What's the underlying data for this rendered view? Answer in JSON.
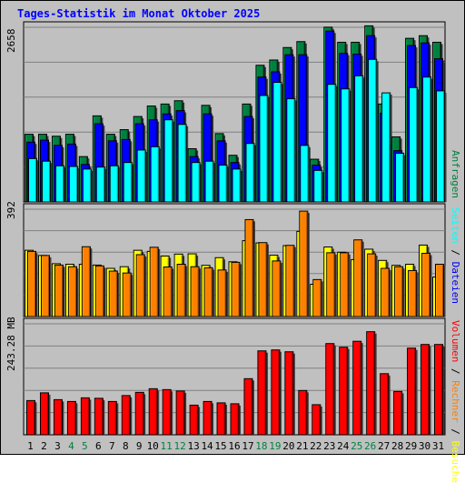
{
  "chart_data": {
    "type": "bar",
    "title": "Tages-Statistik im Monat Oktober 2025",
    "categories": [
      "1",
      "2",
      "3",
      "4",
      "5",
      "6",
      "7",
      "8",
      "9",
      "10",
      "11",
      "12",
      "13",
      "14",
      "15",
      "16",
      "17",
      "18",
      "19",
      "20",
      "21",
      "22",
      "23",
      "24",
      "25",
      "26",
      "27",
      "28",
      "29",
      "30",
      "31"
    ],
    "weekend_days": [
      "4",
      "5",
      "11",
      "12",
      "18",
      "19",
      "25",
      "26"
    ],
    "panels": [
      {
        "id": "top",
        "ymax_label": "2658",
        "ymax": 2658,
        "series": [
          {
            "name": "Anfragen",
            "color": "#008040",
            "values": [
              1030,
              1030,
              1000,
              1030,
              690,
              1310,
              1030,
              1100,
              1300,
              1460,
              1490,
              1540,
              810,
              1470,
              1040,
              710,
              1490,
              2080,
              2160,
              2350,
              2440,
              650,
              2660,
              2430,
              2430,
              2680,
              1490,
              990,
              2490,
              2530,
              2430
            ]
          },
          {
            "name": "Dateien",
            "color": "#0000ff",
            "values": [
              910,
              940,
              860,
              880,
              570,
              1190,
              930,
              950,
              1190,
              1250,
              1340,
              1390,
              690,
              1340,
              930,
              600,
              1300,
              1900,
              1980,
              2240,
              2240,
              560,
              2600,
              2260,
              2250,
              2530,
              1350,
              780,
              2380,
              2420,
              2180
            ]
          },
          {
            "name": "Seiten",
            "color": "#00ffff",
            "values": [
              660,
              620,
              550,
              540,
              500,
              530,
              550,
              600,
              790,
              840,
              1250,
              1180,
              600,
              620,
              560,
              500,
              890,
              1620,
              1820,
              1570,
              860,
              480,
              1790,
              1720,
              1920,
              2170,
              1660,
              740,
              1740,
              1900,
              1690
            ]
          }
        ]
      },
      {
        "id": "middle",
        "ymax_label": "392",
        "ymax": 392,
        "series": [
          {
            "name": "Besuche",
            "color": "#ffff00",
            "values": [
              242,
              223,
              193,
              191,
              191,
              188,
              176,
              182,
              242,
              238,
              221,
              228,
              229,
              187,
              215,
              200,
              277,
              269,
              224,
              259,
              311,
              118,
              254,
              235,
              208,
              246,
              205,
              187,
              191,
              261,
              144
            ]
          },
          {
            "name": "Rechner",
            "color": "#ff8000",
            "values": [
              238,
              223,
              188,
              182,
              255,
              185,
              166,
              159,
              226,
              253,
              181,
              191,
              182,
              178,
              170,
              198,
              354,
              270,
              203,
              260,
              385,
              135,
              233,
              233,
              280,
              229,
              176,
              182,
              168,
              231,
              191
            ]
          }
        ]
      },
      {
        "id": "bottom",
        "ymax_label": "243.28 MB",
        "ymax": 243.28,
        "series": [
          {
            "name": "Volumen",
            "color": "#ff0000",
            "values": [
              75,
              92,
              77,
              73,
              81,
              80,
              73,
              86,
              93,
              101,
              99,
              96,
              65,
              73,
              70,
              68,
              123,
              184,
              186,
              182,
              97,
              66,
              200,
              192,
              205,
              226,
              134,
              95,
              190,
              198,
              198
            ]
          }
        ]
      }
    ],
    "legend": {
      "top": [
        "Anfragen"
      ],
      "middle": [
        "Seiten",
        "Dateien"
      ],
      "bottom": [
        "Volumen",
        "Rechner",
        "Besuche"
      ],
      "separator": " / "
    },
    "colors": {
      "background": "#c0c0c0",
      "title": "#0000ff",
      "weekday_label": "#000000",
      "weekend_label": "#008040",
      "grid": "#808080"
    }
  }
}
